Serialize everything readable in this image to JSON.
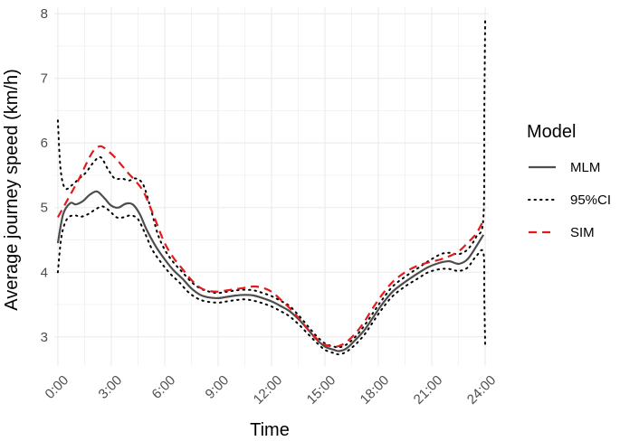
{
  "chart_data": {
    "type": "line",
    "xlabel": "Time",
    "ylabel": "Average journey speed (km/h)",
    "x_ticks": [
      "0:00",
      "3:00",
      "6:00",
      "9:00",
      "12:00",
      "15:00",
      "18:00",
      "21:00",
      "24:00"
    ],
    "x_tick_values": [
      0,
      3,
      6,
      9,
      12,
      15,
      18,
      21,
      24
    ],
    "y_ticks": [
      "3",
      "4",
      "5",
      "6",
      "7",
      "8"
    ],
    "y_tick_values": [
      3,
      4,
      5,
      6,
      7,
      8
    ],
    "xlim": [
      -0.2,
      24.2
    ],
    "ylim": [
      2.55,
      8.1
    ],
    "grid": true,
    "legend": {
      "title": "Model",
      "position": "right",
      "entries": [
        {
          "label": "MLM",
          "series": "MLM"
        },
        {
          "label": "95%CI",
          "series": "95%CI"
        },
        {
          "label": "SIM",
          "series": "SIM"
        }
      ]
    },
    "colors": {
      "MLM": "#4d4d4d",
      "95%CI": "#000000",
      "SIM": "#e31a1c",
      "grid": "#ebebeb",
      "axis_text": "#4d4d4d"
    },
    "series": [
      {
        "name": "MLM",
        "style": "solid",
        "points": [
          [
            0,
            4.45
          ],
          [
            0.3,
            4.9
          ],
          [
            0.7,
            5.07
          ],
          [
            1.0,
            5.05
          ],
          [
            1.4,
            5.1
          ],
          [
            1.8,
            5.2
          ],
          [
            2.2,
            5.25
          ],
          [
            2.6,
            5.15
          ],
          [
            3.0,
            5.03
          ],
          [
            3.4,
            5.0
          ],
          [
            3.8,
            5.06
          ],
          [
            4.2,
            5.05
          ],
          [
            4.6,
            4.9
          ],
          [
            5.0,
            4.65
          ],
          [
            5.5,
            4.4
          ],
          [
            6.0,
            4.2
          ],
          [
            6.5,
            4.03
          ],
          [
            7.0,
            3.9
          ],
          [
            7.5,
            3.75
          ],
          [
            8.0,
            3.65
          ],
          [
            8.5,
            3.61
          ],
          [
            9.0,
            3.6
          ],
          [
            9.5,
            3.62
          ],
          [
            10.0,
            3.64
          ],
          [
            10.5,
            3.65
          ],
          [
            11.0,
            3.64
          ],
          [
            11.5,
            3.6
          ],
          [
            12.0,
            3.55
          ],
          [
            12.5,
            3.48
          ],
          [
            13.0,
            3.4
          ],
          [
            13.5,
            3.28
          ],
          [
            14.0,
            3.13
          ],
          [
            14.5,
            2.97
          ],
          [
            15.0,
            2.85
          ],
          [
            15.5,
            2.8
          ],
          [
            15.8,
            2.78
          ],
          [
            16.2,
            2.82
          ],
          [
            16.7,
            2.95
          ],
          [
            17.2,
            3.1
          ],
          [
            17.7,
            3.3
          ],
          [
            18.2,
            3.5
          ],
          [
            18.8,
            3.7
          ],
          [
            19.5,
            3.85
          ],
          [
            20.2,
            3.98
          ],
          [
            20.8,
            4.08
          ],
          [
            21.5,
            4.15
          ],
          [
            22.0,
            4.17
          ],
          [
            22.5,
            4.13
          ],
          [
            23.0,
            4.2
          ],
          [
            23.5,
            4.4
          ],
          [
            23.9,
            4.58
          ]
        ]
      },
      {
        "name": "95%CI",
        "style": "dotted",
        "bound": "upper",
        "points": [
          [
            0,
            6.35
          ],
          [
            0.15,
            5.6
          ],
          [
            0.4,
            5.3
          ],
          [
            0.8,
            5.35
          ],
          [
            1.2,
            5.45
          ],
          [
            1.6,
            5.55
          ],
          [
            2.0,
            5.7
          ],
          [
            2.4,
            5.78
          ],
          [
            2.8,
            5.6
          ],
          [
            3.2,
            5.45
          ],
          [
            3.6,
            5.45
          ],
          [
            4.0,
            5.42
          ],
          [
            4.4,
            5.45
          ],
          [
            4.8,
            5.35
          ],
          [
            5.2,
            5.0
          ],
          [
            5.6,
            4.6
          ],
          [
            6.0,
            4.35
          ],
          [
            6.5,
            4.15
          ],
          [
            7.0,
            4.0
          ],
          [
            7.5,
            3.85
          ],
          [
            8.0,
            3.75
          ],
          [
            8.5,
            3.7
          ],
          [
            9.0,
            3.68
          ],
          [
            9.5,
            3.7
          ],
          [
            10.0,
            3.72
          ],
          [
            10.5,
            3.73
          ],
          [
            11.0,
            3.72
          ],
          [
            11.5,
            3.68
          ],
          [
            12.0,
            3.63
          ],
          [
            12.5,
            3.56
          ],
          [
            13.0,
            3.48
          ],
          [
            13.5,
            3.34
          ],
          [
            14.0,
            3.18
          ],
          [
            14.5,
            3.02
          ],
          [
            15.0,
            2.9
          ],
          [
            15.5,
            2.85
          ],
          [
            15.8,
            2.84
          ],
          [
            16.2,
            2.88
          ],
          [
            16.7,
            3.0
          ],
          [
            17.2,
            3.17
          ],
          [
            17.7,
            3.37
          ],
          [
            18.2,
            3.57
          ],
          [
            18.8,
            3.78
          ],
          [
            19.5,
            3.93
          ],
          [
            20.2,
            4.06
          ],
          [
            20.8,
            4.17
          ],
          [
            21.5,
            4.28
          ],
          [
            22.0,
            4.3
          ],
          [
            22.5,
            4.28
          ],
          [
            23.0,
            4.35
          ],
          [
            23.5,
            4.55
          ],
          [
            23.9,
            4.85
          ],
          [
            23.95,
            6.5
          ],
          [
            24.0,
            7.95
          ]
        ]
      },
      {
        "name": "95%CI lower",
        "style": "dotted",
        "bound": "lower",
        "points": [
          [
            0,
            4.0
          ],
          [
            0.2,
            4.55
          ],
          [
            0.5,
            4.82
          ],
          [
            0.9,
            4.88
          ],
          [
            1.3,
            4.86
          ],
          [
            1.7,
            4.9
          ],
          [
            2.1,
            4.97
          ],
          [
            2.5,
            5.02
          ],
          [
            2.9,
            4.95
          ],
          [
            3.3,
            4.85
          ],
          [
            3.7,
            4.85
          ],
          [
            4.1,
            4.88
          ],
          [
            4.5,
            4.82
          ],
          [
            4.9,
            4.6
          ],
          [
            5.3,
            4.35
          ],
          [
            5.8,
            4.15
          ],
          [
            6.3,
            3.98
          ],
          [
            6.8,
            3.85
          ],
          [
            7.3,
            3.7
          ],
          [
            7.8,
            3.6
          ],
          [
            8.3,
            3.55
          ],
          [
            9.0,
            3.53
          ],
          [
            9.5,
            3.55
          ],
          [
            10.0,
            3.57
          ],
          [
            10.5,
            3.58
          ],
          [
            11.0,
            3.56
          ],
          [
            11.5,
            3.52
          ],
          [
            12.0,
            3.47
          ],
          [
            12.5,
            3.4
          ],
          [
            13.0,
            3.32
          ],
          [
            13.5,
            3.2
          ],
          [
            14.0,
            3.06
          ],
          [
            14.5,
            2.92
          ],
          [
            15.0,
            2.8
          ],
          [
            15.5,
            2.75
          ],
          [
            15.8,
            2.73
          ],
          [
            16.2,
            2.77
          ],
          [
            16.7,
            2.88
          ],
          [
            17.2,
            3.03
          ],
          [
            17.7,
            3.23
          ],
          [
            18.2,
            3.43
          ],
          [
            18.8,
            3.63
          ],
          [
            19.5,
            3.78
          ],
          [
            20.2,
            3.9
          ],
          [
            20.8,
            4.0
          ],
          [
            21.5,
            4.05
          ],
          [
            22.0,
            4.05
          ],
          [
            22.5,
            4.02
          ],
          [
            23.0,
            4.07
          ],
          [
            23.5,
            4.25
          ],
          [
            23.9,
            4.3
          ],
          [
            23.95,
            3.6
          ],
          [
            24.0,
            2.85
          ]
        ]
      },
      {
        "name": "SIM",
        "style": "dashed",
        "points": [
          [
            0,
            4.85
          ],
          [
            0.4,
            5.05
          ],
          [
            0.8,
            5.25
          ],
          [
            1.2,
            5.45
          ],
          [
            1.6,
            5.68
          ],
          [
            2.0,
            5.88
          ],
          [
            2.4,
            5.95
          ],
          [
            2.8,
            5.88
          ],
          [
            3.2,
            5.78
          ],
          [
            3.6,
            5.65
          ],
          [
            4.0,
            5.52
          ],
          [
            4.4,
            5.4
          ],
          [
            4.8,
            5.25
          ],
          [
            5.2,
            5.0
          ],
          [
            5.6,
            4.72
          ],
          [
            6.0,
            4.45
          ],
          [
            6.5,
            4.22
          ],
          [
            7.0,
            4.05
          ],
          [
            7.5,
            3.88
          ],
          [
            8.0,
            3.76
          ],
          [
            8.5,
            3.71
          ],
          [
            9.0,
            3.7
          ],
          [
            9.5,
            3.72
          ],
          [
            10.0,
            3.74
          ],
          [
            10.5,
            3.76
          ],
          [
            11.0,
            3.78
          ],
          [
            11.5,
            3.76
          ],
          [
            12.0,
            3.7
          ],
          [
            12.5,
            3.58
          ],
          [
            13.0,
            3.45
          ],
          [
            13.5,
            3.3
          ],
          [
            14.0,
            3.13
          ],
          [
            14.5,
            2.98
          ],
          [
            15.0,
            2.88
          ],
          [
            15.5,
            2.85
          ],
          [
            15.8,
            2.86
          ],
          [
            16.2,
            2.92
          ],
          [
            16.7,
            3.05
          ],
          [
            17.2,
            3.23
          ],
          [
            17.7,
            3.45
          ],
          [
            18.2,
            3.65
          ],
          [
            18.8,
            3.85
          ],
          [
            19.5,
            4.0
          ],
          [
            20.2,
            4.1
          ],
          [
            20.8,
            4.15
          ],
          [
            21.5,
            4.2
          ],
          [
            22.0,
            4.25
          ],
          [
            22.5,
            4.32
          ],
          [
            23.0,
            4.45
          ],
          [
            23.5,
            4.6
          ],
          [
            23.9,
            4.8
          ]
        ]
      }
    ]
  }
}
